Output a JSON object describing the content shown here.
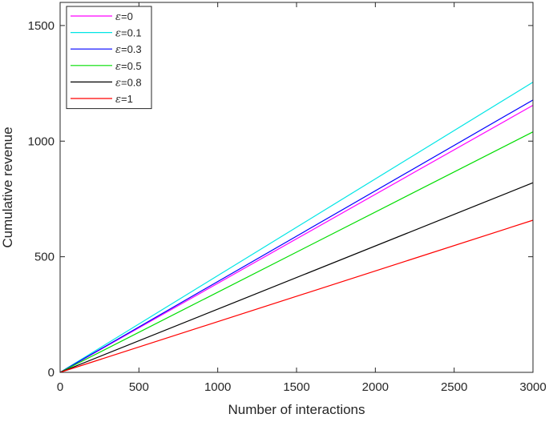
{
  "chart_data": {
    "type": "line",
    "title": "",
    "xlabel": "Number of interactions",
    "ylabel": "Cumulative revenue",
    "xlim": [
      0,
      3000
    ],
    "ylim": [
      0,
      1600
    ],
    "xticks": [
      0,
      500,
      1000,
      1500,
      2000,
      2500,
      3000
    ],
    "yticks": [
      0,
      500,
      1000,
      1500
    ],
    "grid": false,
    "legend_position": "top-left",
    "series": [
      {
        "name": "=0",
        "legend_symbol": "ε",
        "color": "#ff00ff",
        "x": [
          0,
          3000
        ],
        "y": [
          0,
          1155
        ]
      },
      {
        "name": "=0.1",
        "legend_symbol": "ε",
        "color": "#00e5e5",
        "x": [
          0,
          3000
        ],
        "y": [
          0,
          1255
        ]
      },
      {
        "name": "=0.3",
        "legend_symbol": "ε",
        "color": "#0000ff",
        "x": [
          0,
          3000
        ],
        "y": [
          0,
          1178
        ]
      },
      {
        "name": "=0.5",
        "legend_symbol": "ε",
        "color": "#00dd00",
        "x": [
          0,
          3000
        ],
        "y": [
          0,
          1040
        ]
      },
      {
        "name": "=0.8",
        "legend_symbol": "ε",
        "color": "#000000",
        "x": [
          0,
          3000
        ],
        "y": [
          0,
          820
        ]
      },
      {
        "name": "=1",
        "legend_symbol": "ε",
        "color": "#ff0000",
        "x": [
          0,
          3000
        ],
        "y": [
          0,
          658
        ]
      }
    ]
  }
}
